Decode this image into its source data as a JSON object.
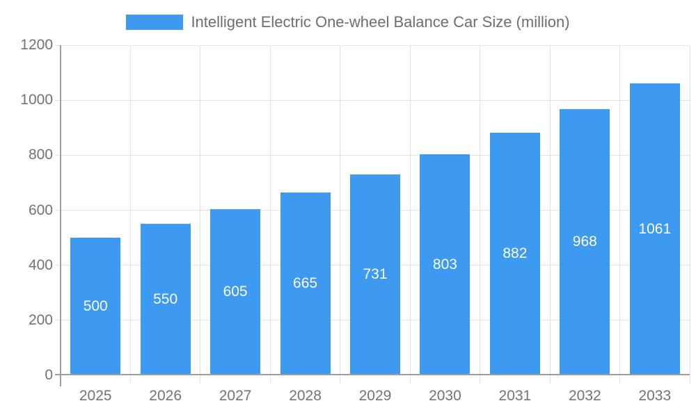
{
  "legend": {
    "label": "Intelligent Electric One-wheel Balance Car Size (million)"
  },
  "chart_data": {
    "type": "bar",
    "title": "Intelligent Electric One-wheel Balance Car Size (million)",
    "categories": [
      "2025",
      "2026",
      "2027",
      "2028",
      "2029",
      "2030",
      "2031",
      "2032",
      "2033"
    ],
    "values": [
      500,
      550,
      605,
      665,
      731,
      803,
      882,
      968,
      1061
    ],
    "xlabel": "",
    "ylabel": "",
    "ylim": [
      0,
      1200
    ],
    "yticks": [
      0,
      200,
      400,
      600,
      800,
      1000,
      1200
    ],
    "grid": true,
    "legend_position": "top-center",
    "value_labels": "inside-center",
    "colors": {
      "bar": "#3d9af0",
      "value_label": "#ffffff",
      "axis_text": "#737373",
      "title_text": "#6e6e6e",
      "gridline": "#e2e2e2",
      "axis_line": "#9e9e9e"
    }
  }
}
